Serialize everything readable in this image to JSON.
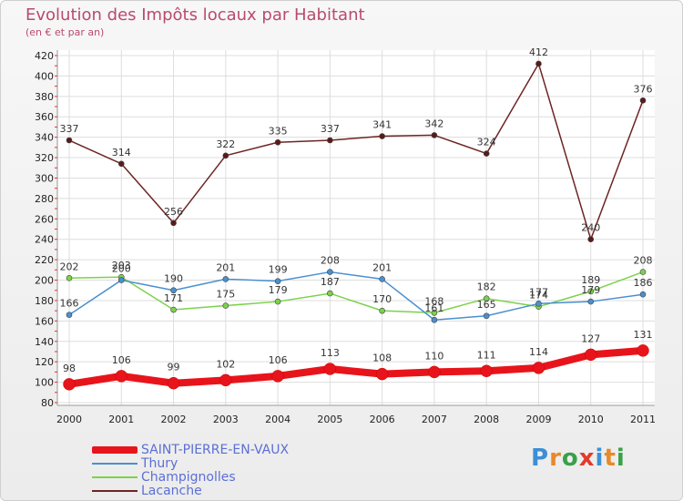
{
  "header": {
    "title": "Evolution des Impôts locaux par Habitant",
    "subtitle": "(en € et par an)"
  },
  "logo": {
    "letters": [
      "P",
      "r",
      "o",
      "x",
      "i",
      "t",
      "i"
    ],
    "colors": [
      "#3b8fd6",
      "#e8892b",
      "#3aa04a",
      "#e23b2c",
      "#3b8fd6",
      "#e8892b",
      "#3aa04a"
    ]
  },
  "chart_data": {
    "type": "line",
    "title": "Evolution des Impôts locaux par Habitant",
    "subtitle": "(en € et par an)",
    "xlabel": "",
    "ylabel": "",
    "x": [
      "2000",
      "2001",
      "2002",
      "2003",
      "2004",
      "2005",
      "2006",
      "2007",
      "2008",
      "2009",
      "2010",
      "2011"
    ],
    "ylim": [
      80,
      420
    ],
    "yticks": [
      80,
      100,
      120,
      140,
      160,
      180,
      200,
      220,
      240,
      260,
      280,
      300,
      320,
      340,
      360,
      380,
      400,
      420
    ],
    "grid": true,
    "legend_position": "bottom-left",
    "series": [
      {
        "name": "SAINT-PIERRE-EN-VAUX",
        "color": "#e8141b",
        "values": [
          98,
          106,
          99,
          102,
          106,
          113,
          108,
          110,
          111,
          114,
          127,
          131
        ]
      },
      {
        "name": "Thury",
        "color": "#4a90d0",
        "values": [
          166,
          200,
          190,
          201,
          199,
          208,
          201,
          161,
          165,
          177,
          179,
          186
        ]
      },
      {
        "name": "Champignolles",
        "color": "#7cd24b",
        "values": [
          202,
          203,
          171,
          175,
          179,
          187,
          170,
          168,
          182,
          174,
          189,
          208
        ]
      },
      {
        "name": "Lacanche",
        "color": "#6e2424",
        "values": [
          337,
          314,
          256,
          322,
          335,
          337,
          341,
          342,
          324,
          412,
          240,
          376
        ]
      }
    ],
    "point_labels": [
      {
        "series": 0,
        "values": [
          "98",
          "106",
          "99",
          "102",
          "106",
          "113",
          "108",
          "110",
          "111",
          "114",
          "127",
          "131"
        ]
      },
      {
        "series": 1,
        "values": [
          "166",
          "200",
          "190",
          "201",
          "199",
          "208",
          "201",
          "161",
          "165",
          "177",
          "179",
          "186"
        ]
      },
      {
        "series": 2,
        "values": [
          "202",
          "203",
          "171",
          "175",
          "179",
          "187",
          "170",
          "168",
          "182",
          "174",
          "189",
          "208"
        ]
      },
      {
        "series": 3,
        "values": [
          "337",
          "314",
          "256",
          "322",
          "335",
          "337",
          "341",
          "342",
          "324",
          "412",
          "240",
          "376"
        ]
      }
    ]
  }
}
